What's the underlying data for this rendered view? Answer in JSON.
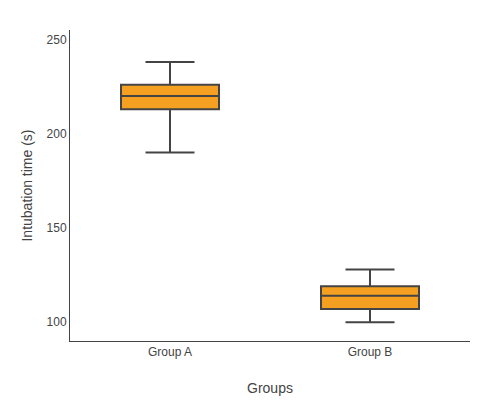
{
  "chart_data": {
    "type": "box",
    "xlabel": "Groups",
    "ylabel": "Intubation time (s)",
    "categories": [
      "Group A",
      "Group B"
    ],
    "median": [
      220,
      114
    ],
    "q1": [
      213,
      107
    ],
    "q3": [
      226,
      119
    ],
    "whisker_low": [
      190,
      100
    ],
    "whisker_high": [
      238,
      128
    ],
    "color": "#F5A020",
    "ylim": [
      90,
      255
    ],
    "yticks": [
      100,
      150,
      200,
      250
    ],
    "grid": false
  }
}
